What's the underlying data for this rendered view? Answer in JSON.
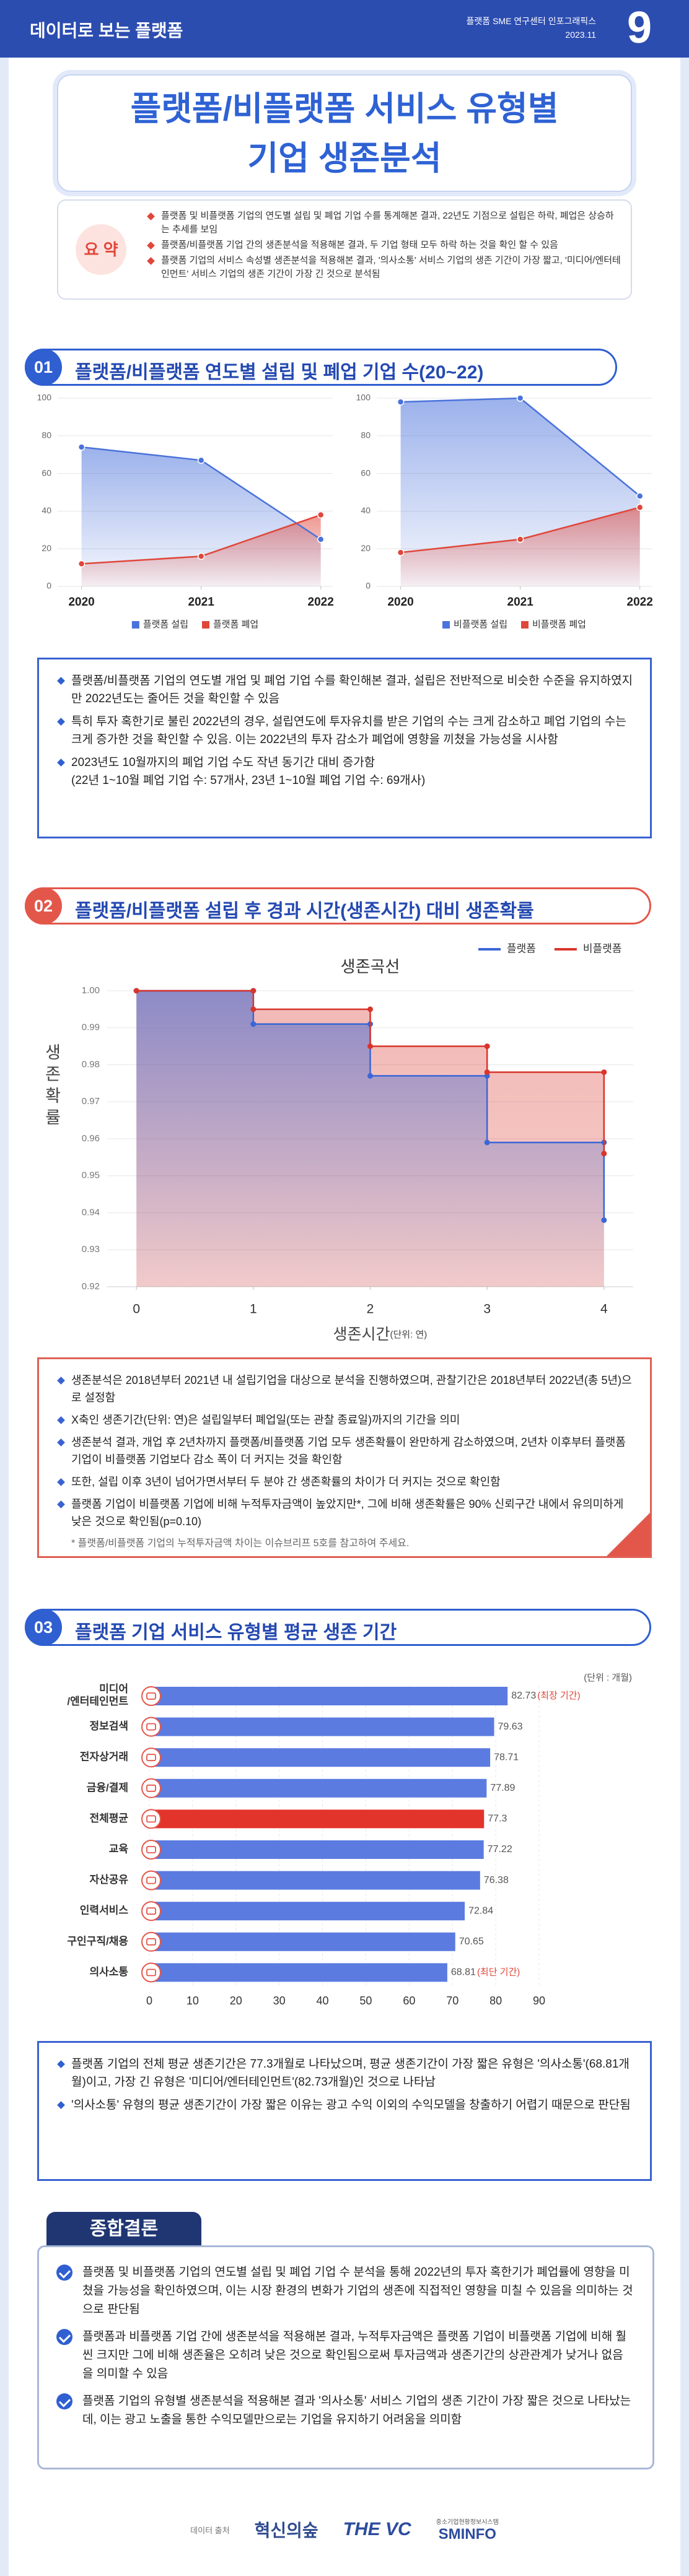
{
  "header": {
    "left": "데이터로 보는 플랫폼",
    "org": "플랫폼 SME 연구센터 인포그래픽스",
    "date": "2023.11",
    "number": "9"
  },
  "title": [
    "플랫폼/비플랫폼 서비스 유형별",
    "기업 생존분석"
  ],
  "summary": {
    "label": "요 약",
    "items": [
      "플랫폼 및 비플랫폼 기업의 연도별 설립 및 폐업 기업 수를 통계해본 결과, 22년도 기점으로 설립은 하락, 폐업은 상승하는 추세를 보임",
      "플랫폼/비플랫폼 기업 간의 생존분석을 적용해본 결과, 두 기업 형태 모두 하락 하는 것을 확인 할 수 있음",
      "플랫폼 기업의 서비스 속성별 생존분석을 적용해본 결과, '의사소통' 서비스 기업의 생존 기간이 가장 짧고, '미디어/엔터테인먼트' 서비스 기업의 생존 기간이 가장 긴 것으로 분석됨"
    ]
  },
  "sections": [
    {
      "num": "01",
      "title": "플랫폼/비플랫폼 연도별 설립 및 폐업 기업 수(20~22)",
      "bullets": [
        "플랫폼/비플랫폼 기업의 연도별 개업 및 폐업 기업 수를 확인해본 결과, 설립은 전반적으로 비슷한 수준을 유지하였지만 2022년도는 줄어든 것을 확인할 수 있음",
        "특히 투자 혹한기로 불린 2022년의 경우, 설립연도에 투자유치를 받은 기업의 수는 크게 감소하고 폐업 기업의 수는 크게 증가한 것을 확인할 수 있음. 이는 2022년의 투자 감소가 폐업에 영향을 끼쳤을 가능성을 시사함",
        "2023년도 10월까지의 폐업 기업 수도 작년 동기간 대비 증가함\n(22년 1~10월 폐업 기업 수: 57개사, 23년 1~10월 폐업 기업 수: 69개사)"
      ]
    },
    {
      "num": "02",
      "title": "플랫폼/비플랫폼 설립 후 경과 시간(생존시간) 대비 생존확률",
      "bullets": [
        "생존분석은 2018년부터 2021년 내 설립기업을 대상으로 분석을 진행하였으며, 관찰기간은 2018년부터 2022년(총 5년)으로 설정함",
        "X축인 생존기간(단위: 연)은 설립일부터 폐업일(또는 관찰 종료일)까지의 기간을 의미",
        "생존분석 결과, 개업 후 2년차까지 플랫폼/비플랫폼 기업 모두 생존확률이 완만하게 감소하였으며, 2년차 이후부터 플랫폼 기업이 비플랫폼 기업보다 감소 폭이 더 커지는 것을 확인함",
        "또한, 설립 이후 3년이 넘어가면서부터 두 분야 간 생존확률의 차이가 더 커지는 것으로 확인함",
        "플랫폼 기업이 비플랫폼 기업에 비해 누적투자금액이 높았지만*, 그에 비해 생존확률은 90% 신뢰구간 내에서 유의미하게 낮은 것으로 확인됨(p=0.10)"
      ],
      "note": "* 플랫폼/비플랫폼 기업의 누적투자금액 차이는 이슈브리프 5호를 참고하여 주세요."
    },
    {
      "num": "03",
      "title": "플랫폼 기업 서비스 유형별 평균 생존 기간",
      "bullets": [
        "플랫폼 기업의 전체 평균 생존기간은 77.3개월로 나타났으며, 평균 생존기간이 가장 짧은 유형은 '의사소통'(68.81개월)이고, 가장 긴 유형은 '미디어/엔터테인먼트'(82.73개월)인 것으로 나타남",
        "'의사소통' 유형의 평균 생존기간이 가장 짧은 이유는 광고 수익 이외의 수익모델을 창출하기 어렵기 때문으로 판단됨"
      ]
    }
  ],
  "conclusion": {
    "title": "종합결론",
    "items": [
      "플랫폼 및 비플랫폼 기업의 연도별 설립 및 폐업 기업 수 분석을 통해 2022년의 투자 혹한기가 폐업률에 영향을 미쳤을 가능성을 확인하였으며, 이는 시장 환경의 변화가 기업의 생존에 직접적인 영향을 미칠 수 있음을 의미하는 것으로 판단됨",
      "플랫폼과 비플랫폼 기업 간에 생존분석을 적용해본 결과, 누적투자금액은 플랫폼 기업이 비플랫폼 기업에 비해 훨씬 크지만 그에 비해 생존율은 오히려 낮은 것으로 확인됨으로써 투자금액과 생존기간의 상관관계가 낮거나 없음을 의미할 수 있음",
      "플랫폼 기업의 유형별 생존분석을 적용해본 결과 '의사소통' 서비스 기업의 생존 기간이 가장 짧은 것으로 나타났는데, 이는 광고 노출을 통한 수익모델만으로는 기업을 유지하기 어려움을 의미함"
    ]
  },
  "footer": {
    "source": "데이터 출처",
    "logo1": "혁신의숲",
    "logo2": "THE VC",
    "logo3_top": "중소기업현황정보시스템",
    "logo3": "SMINFO"
  },
  "chart_data": [
    {
      "type": "area",
      "x": [
        2020,
        2021,
        2022
      ],
      "xlim": [
        2019.8,
        2022.1
      ],
      "xticks": [
        2020,
        2021,
        2022
      ],
      "ylim": [
        0,
        100
      ],
      "yticks": [
        0,
        20,
        40,
        60,
        80,
        100
      ],
      "grid": true,
      "legend": "bottom",
      "series": [
        {
          "name": "플랫폼 설립",
          "color": "#4a72db",
          "values": [
            74,
            67,
            25
          ]
        },
        {
          "name": "플랫폼 폐업",
          "color": "#e0463a",
          "values": [
            12,
            16,
            38
          ]
        }
      ]
    },
    {
      "type": "area",
      "x": [
        2020,
        2021,
        2022
      ],
      "xlim": [
        2019.8,
        2022.1
      ],
      "xticks": [
        2020,
        2021,
        2022
      ],
      "ylim": [
        0,
        100
      ],
      "yticks": [
        0,
        20,
        40,
        60,
        80,
        100
      ],
      "grid": true,
      "legend": "bottom",
      "series": [
        {
          "name": "비플랫폼 설립",
          "color": "#4a72db",
          "values": [
            98,
            100,
            48
          ]
        },
        {
          "name": "비플랫폼 폐업",
          "color": "#e0463a",
          "values": [
            18,
            25,
            42
          ]
        }
      ]
    },
    {
      "type": "step",
      "title": "생존곡선",
      "xlabel": "생존시간",
      "xlabel_unit": "(단위: 연)",
      "ylabel": "생존확률",
      "x": [
        0,
        1,
        2,
        3,
        4
      ],
      "xlim": [
        -0.25,
        4.25
      ],
      "xticks": [
        0,
        1,
        2,
        3,
        4
      ],
      "ylim": [
        0.92,
        1.0
      ],
      "yticks": [
        0.92,
        0.93,
        0.94,
        0.95,
        0.96,
        0.97,
        0.98,
        0.99,
        {
          "value": 1,
          "label": "1.00"
        }
      ],
      "grid": true,
      "legend": "upper right",
      "series": [
        {
          "name": "플랫폼",
          "color": "#3a66d6",
          "values": [
            1.0,
            0.991,
            0.977,
            0.959,
            0.938
          ]
        },
        {
          "name": "비플랫폼",
          "color": "#d9352b",
          "values": [
            1.0,
            0.995,
            0.985,
            0.978,
            0.956
          ]
        }
      ]
    },
    {
      "type": "barh",
      "unit": "(단위 : 개월)",
      "categories": [
        "미디어\n/엔터테인먼트",
        "정보검색",
        "전자상거래",
        "금융/결제",
        "전체평균",
        "교육",
        "자산공유",
        "인력서비스",
        "구인구직/채용",
        "의사소통"
      ],
      "values": [
        82.73,
        79.63,
        78.71,
        77.89,
        77.3,
        77.22,
        76.38,
        72.84,
        70.65,
        68.81
      ],
      "value_notes": [
        "(최장 기간)",
        null,
        null,
        null,
        null,
        null,
        null,
        null,
        null,
        "(최단 기간)"
      ],
      "colors": [
        "#5b7be0",
        "#5b7be0",
        "#5b7be0",
        "#5b7be0",
        "#e3342b",
        "#5b7be0",
        "#5b7be0",
        "#5b7be0",
        "#5b7be0",
        "#5b7be0"
      ],
      "xlim": [
        0,
        90
      ],
      "xticks": [
        0,
        10,
        20,
        30,
        40,
        50,
        60,
        70,
        80,
        90
      ],
      "grid": true
    }
  ]
}
